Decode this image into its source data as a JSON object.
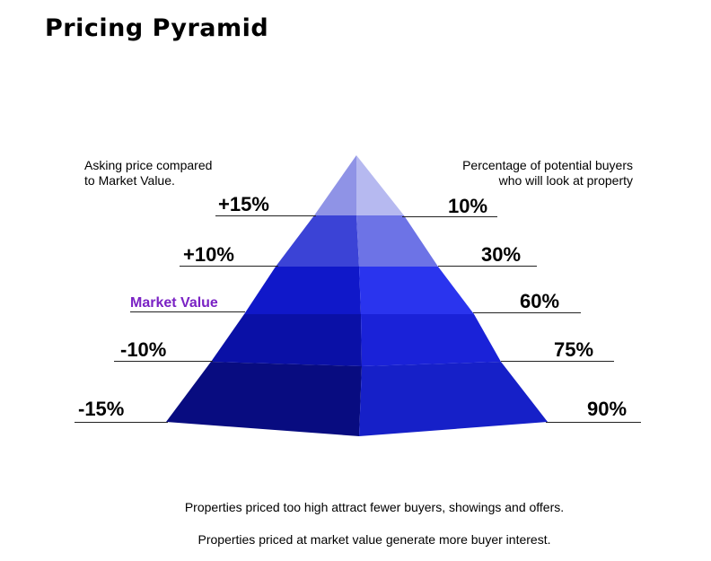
{
  "title": "Pricing Pyramid",
  "left_caption": [
    "Asking price compared",
    "to Market Value."
  ],
  "right_caption": [
    "Percentage of potential buyers",
    "who will look at property"
  ],
  "left_labels": [
    "+15%",
    "+10%",
    "Market Value",
    "-10%",
    "-15%"
  ],
  "right_labels": [
    "10%",
    "30%",
    "60%",
    "75%",
    "90%"
  ],
  "footer": [
    "Properties priced too high attract fewer buyers, showings and offers.",
    "Properties priced at market value generate more buyer interest."
  ],
  "colors": {
    "tier1_left": "#8f93e6",
    "tier1_right": "#b6b9f0",
    "tier2_left": "#3b43d6",
    "tier2_right": "#6d73e6",
    "tier3_left": "#1018c9",
    "tier3_right": "#2a34ee",
    "tier4_left": "#0a10a6",
    "tier4_right": "#1a22d8",
    "tier5_left": "#080c80",
    "tier5_right": "#1620c8",
    "market_value_label": "#7a22c4"
  }
}
